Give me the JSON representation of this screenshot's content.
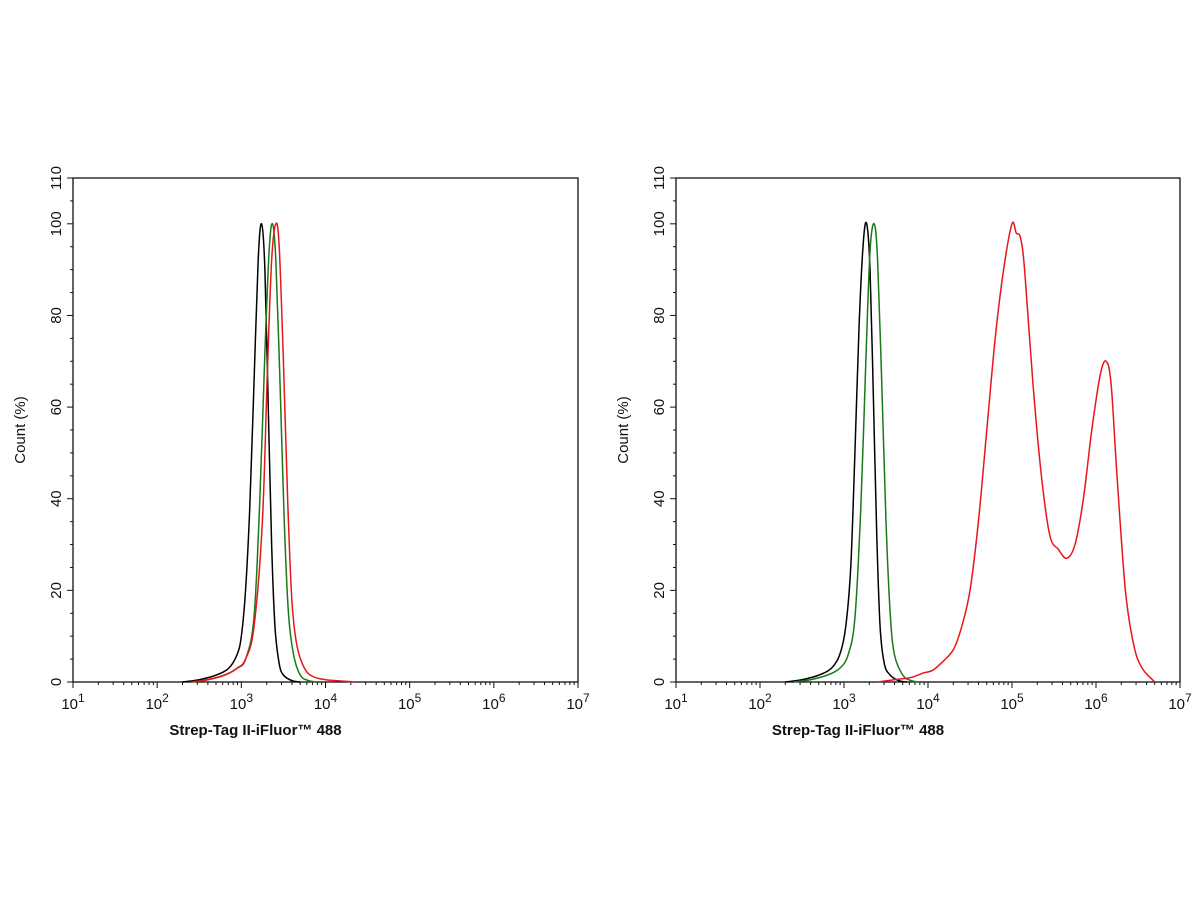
{
  "chart_data": [
    {
      "type": "line",
      "panel": "left",
      "xlabel": "Strep-Tag II-iFluor™ 488",
      "ylabel": "Count  (%)",
      "xscale": "log",
      "xlim": [
        10,
        10000000
      ],
      "ylim": [
        0,
        110
      ],
      "x_ticks": [
        {
          "base": "10",
          "exp": "1"
        },
        {
          "base": "10",
          "exp": "2"
        },
        {
          "base": "10",
          "exp": "3"
        },
        {
          "base": "10",
          "exp": "4"
        },
        {
          "base": "10",
          "exp": "5"
        },
        {
          "base": "10",
          "exp": "6"
        },
        {
          "base": "10",
          "exp": "7"
        }
      ],
      "y_ticks": [
        "0",
        "20",
        "40",
        "60",
        "80",
        "100",
        "110"
      ],
      "grid": false,
      "x_encoding": "log10 of fluorescence intensity",
      "series": [
        {
          "name": "black",
          "color": "#000000",
          "log10_x": [
            2.3,
            2.5,
            2.7,
            2.85,
            2.95,
            3.0,
            3.05,
            3.1,
            3.15,
            3.2,
            3.24,
            3.28,
            3.32,
            3.36,
            3.4,
            3.45,
            3.5,
            3.6,
            3.7
          ],
          "y": [
            0,
            0.5,
            1.5,
            3,
            6,
            10,
            20,
            38,
            65,
            92,
            100,
            90,
            60,
            30,
            12,
            4,
            1.5,
            0.3,
            0
          ]
        },
        {
          "name": "green",
          "color": "#1a7a1a",
          "log10_x": [
            2.4,
            2.6,
            2.8,
            2.95,
            3.05,
            3.15,
            3.22,
            3.28,
            3.33,
            3.37,
            3.41,
            3.46,
            3.51,
            3.56,
            3.62,
            3.7,
            3.8,
            3.9
          ],
          "y": [
            0,
            0.5,
            1.5,
            3,
            5,
            14,
            40,
            72,
            94,
            100,
            92,
            65,
            35,
            15,
            6,
            1.5,
            0.3,
            0
          ]
        },
        {
          "name": "red",
          "color": "#e8161b",
          "log10_x": [
            2.4,
            2.6,
            2.8,
            2.95,
            3.05,
            3.15,
            3.25,
            3.31,
            3.36,
            3.41,
            3.45,
            3.5,
            3.55,
            3.6,
            3.66,
            3.75,
            3.85,
            4.0,
            4.2,
            4.35
          ],
          "y": [
            0,
            0.5,
            1.5,
            3,
            5,
            12,
            35,
            68,
            92,
            100,
            95,
            70,
            40,
            18,
            8,
            3,
            1.2,
            0.5,
            0.2,
            0
          ]
        }
      ]
    },
    {
      "type": "line",
      "panel": "right",
      "xlabel": "Strep-Tag II-iFluor™ 488",
      "ylabel": "Count  (%)",
      "xscale": "log",
      "xlim": [
        10,
        10000000
      ],
      "ylim": [
        0,
        110
      ],
      "x_ticks": [
        {
          "base": "10",
          "exp": "1"
        },
        {
          "base": "10",
          "exp": "2"
        },
        {
          "base": "10",
          "exp": "3"
        },
        {
          "base": "10",
          "exp": "4"
        },
        {
          "base": "10",
          "exp": "5"
        },
        {
          "base": "10",
          "exp": "6"
        },
        {
          "base": "10",
          "exp": "7"
        }
      ],
      "y_ticks": [
        "0",
        "20",
        "40",
        "60",
        "80",
        "100",
        "110"
      ],
      "grid": false,
      "x_encoding": "log10 of fluorescence intensity",
      "series": [
        {
          "name": "black",
          "color": "#000000",
          "log10_x": [
            2.3,
            2.5,
            2.7,
            2.85,
            2.95,
            3.02,
            3.08,
            3.13,
            3.18,
            3.23,
            3.27,
            3.31,
            3.35,
            3.39,
            3.43,
            3.48,
            3.55,
            3.65,
            3.75
          ],
          "y": [
            0,
            0.5,
            1.5,
            3,
            6,
            12,
            25,
            50,
            78,
            96,
            100,
            90,
            62,
            32,
            12,
            4,
            1.5,
            0.3,
            0
          ]
        },
        {
          "name": "green",
          "color": "#1a7a1a",
          "log10_x": [
            2.4,
            2.6,
            2.8,
            2.95,
            3.05,
            3.13,
            3.2,
            3.26,
            3.31,
            3.36,
            3.4,
            3.45,
            3.5,
            3.55,
            3.6,
            3.7,
            3.8,
            3.9
          ],
          "y": [
            0,
            0.5,
            1.5,
            3,
            6,
            14,
            38,
            70,
            94,
            100,
            92,
            65,
            35,
            15,
            6,
            1.5,
            0.3,
            0
          ]
        },
        {
          "name": "red",
          "color": "#e8161b",
          "log10_x": [
            3.4,
            3.6,
            3.8,
            3.95,
            4.05,
            4.15,
            4.3,
            4.4,
            4.5,
            4.6,
            4.7,
            4.8,
            4.9,
            5.0,
            5.05,
            5.1,
            5.15,
            5.25,
            5.35,
            5.45,
            5.55,
            5.65,
            5.75,
            5.85,
            5.95,
            6.05,
            6.12,
            6.18,
            6.25,
            6.35,
            6.45,
            6.55,
            6.7
          ],
          "y": [
            0,
            0.5,
            1,
            2,
            2.5,
            4,
            7,
            12,
            20,
            35,
            55,
            75,
            90,
            100,
            98,
            97,
            90,
            65,
            45,
            32,
            29,
            27,
            30,
            40,
            55,
            67,
            70,
            65,
            45,
            20,
            8,
            3,
            0
          ]
        }
      ]
    }
  ]
}
